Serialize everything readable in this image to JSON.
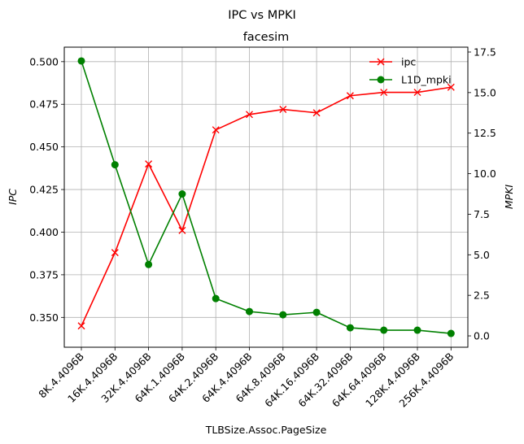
{
  "chart_data": {
    "type": "line",
    "suptitle": "IPC vs MPKI",
    "title": "facesim",
    "xlabel": "TLBSize.Assoc.PageSize",
    "ylabel_left": "IPC",
    "ylabel_right": "MPKI",
    "categories": [
      "8K.4.4096B",
      "16K.4.4096B",
      "32K.4.4096B",
      "64K.1.4096B",
      "64K.2.4096B",
      "64K.4.4096B",
      "64K.8.4096B",
      "64K.16.4096B",
      "64K.32.4096B",
      "64K.64.4096B",
      "128K.4.4096B",
      "256K.4.4096B"
    ],
    "series": [
      {
        "name": "ipc",
        "axis": "left",
        "color": "#ff0000",
        "marker": "x",
        "values": [
          0.345,
          0.388,
          0.44,
          0.401,
          0.46,
          0.469,
          0.472,
          0.47,
          0.48,
          0.482,
          0.482,
          0.485
        ]
      },
      {
        "name": "L1D_mpki",
        "axis": "right",
        "color": "#008000",
        "marker": "o",
        "values": [
          16.95,
          10.55,
          4.4,
          8.75,
          2.3,
          1.5,
          1.3,
          1.45,
          0.5,
          0.35,
          0.35,
          0.15
        ]
      }
    ],
    "ylim_left": [
      0.3325,
      0.5085
    ],
    "yticks_left": [
      "0.350",
      "0.375",
      "0.400",
      "0.425",
      "0.450",
      "0.475",
      "0.500"
    ],
    "ylim_right": [
      -0.7,
      17.8
    ],
    "yticks_right": [
      "0.0",
      "2.5",
      "5.0",
      "7.5",
      "10.0",
      "12.5",
      "15.0",
      "17.5"
    ],
    "grid": true,
    "legend_position": "top-right"
  }
}
